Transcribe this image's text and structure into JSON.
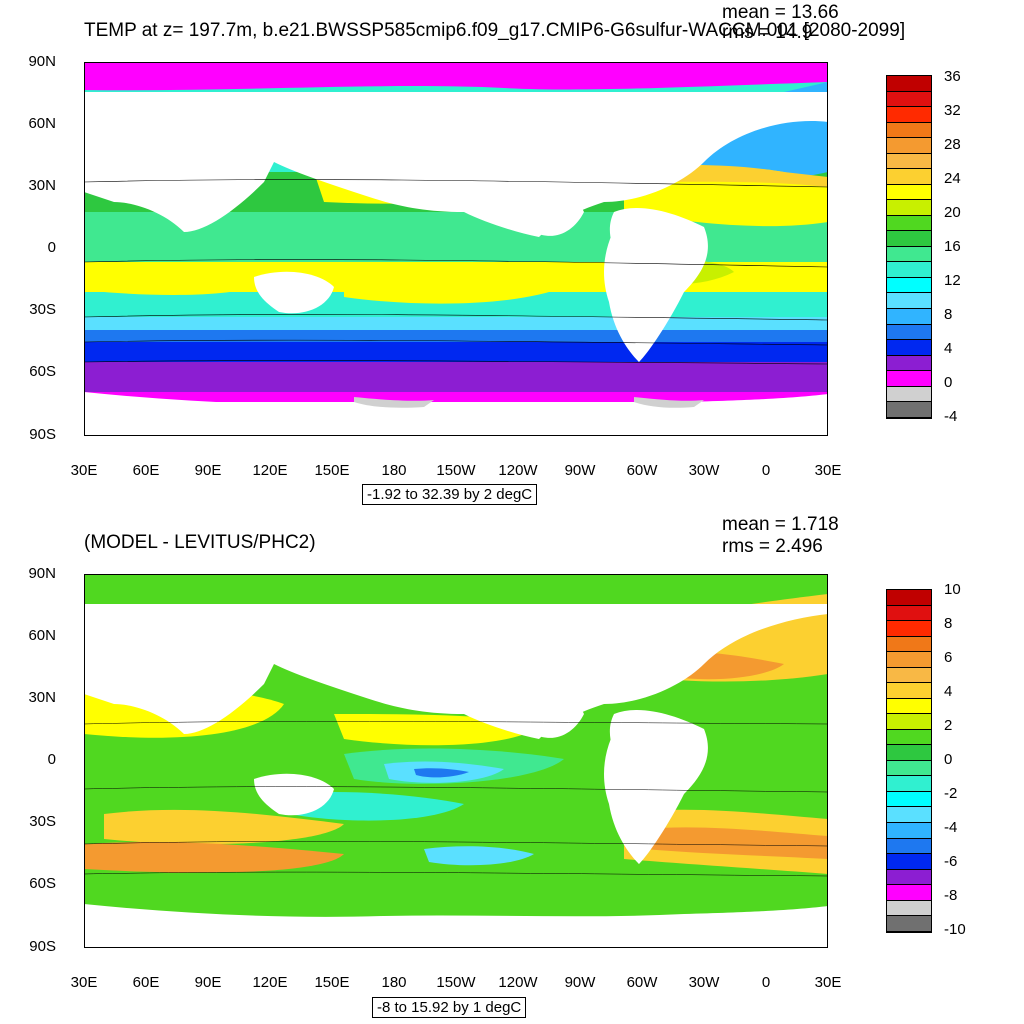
{
  "panels": [
    {
      "title": "TEMP at z= 197.7m, b.e21.BWSSP585cmip6.f09_g17.CMIP6-G6sulfur-WACCM.001 [2080-2099]",
      "mean_label": "mean = 13.66",
      "rms_label": "rms = 14.9",
      "range_label": "-1.92 to 32.39 by 2 degC",
      "lat_labels": [
        "90N",
        "60N",
        "30N",
        "0",
        "30S",
        "60S",
        "90S"
      ],
      "lon_labels": [
        "30E",
        "60E",
        "90E",
        "120E",
        "150E",
        "180",
        "150W",
        "120W",
        "90W",
        "60W",
        "30W",
        "0",
        "30E"
      ],
      "colorbar_labels": [
        "36",
        "32",
        "28",
        "24",
        "20",
        "16",
        "12",
        "8",
        "4",
        "0",
        "-4"
      ],
      "colorbar_colors": [
        "#c00000",
        "#e01010",
        "#ff2a00",
        "#f07818",
        "#f49a30",
        "#f8b845",
        "#fcd030",
        "#ffff00",
        "#c8f000",
        "#50d820",
        "#2ec840",
        "#40e890",
        "#30f0d0",
        "#00ffff",
        "#5ae0ff",
        "#30b4ff",
        "#1e78f0",
        "#0028f0",
        "#8c1ed2",
        "#ff00ff",
        "#d0d0d0",
        "#707070"
      ]
    },
    {
      "title": "(MODEL - LEVITUS/PHC2)",
      "mean_label": "mean = 1.718",
      "rms_label": "rms = 2.496",
      "range_label": "-8 to 15.92 by 1 degC",
      "lat_labels": [
        "90N",
        "60N",
        "30N",
        "0",
        "30S",
        "60S",
        "90S"
      ],
      "lon_labels": [
        "30E",
        "60E",
        "90E",
        "120E",
        "150E",
        "180",
        "150W",
        "120W",
        "90W",
        "60W",
        "30W",
        "0",
        "30E"
      ],
      "colorbar_labels": [
        "10",
        "8",
        "6",
        "4",
        "2",
        "0",
        "-2",
        "-4",
        "-6",
        "-8",
        "-10"
      ],
      "colorbar_colors": [
        "#c00000",
        "#e01010",
        "#ff2a00",
        "#f07818",
        "#f49a30",
        "#f8b845",
        "#fcd030",
        "#ffff00",
        "#c8f000",
        "#50d820",
        "#2ec840",
        "#40e890",
        "#30f0d0",
        "#00ffff",
        "#5ae0ff",
        "#30b4ff",
        "#1e78f0",
        "#0028f0",
        "#8c1ed2",
        "#ff00ff",
        "#d0d0d0",
        "#707070"
      ]
    }
  ]
}
